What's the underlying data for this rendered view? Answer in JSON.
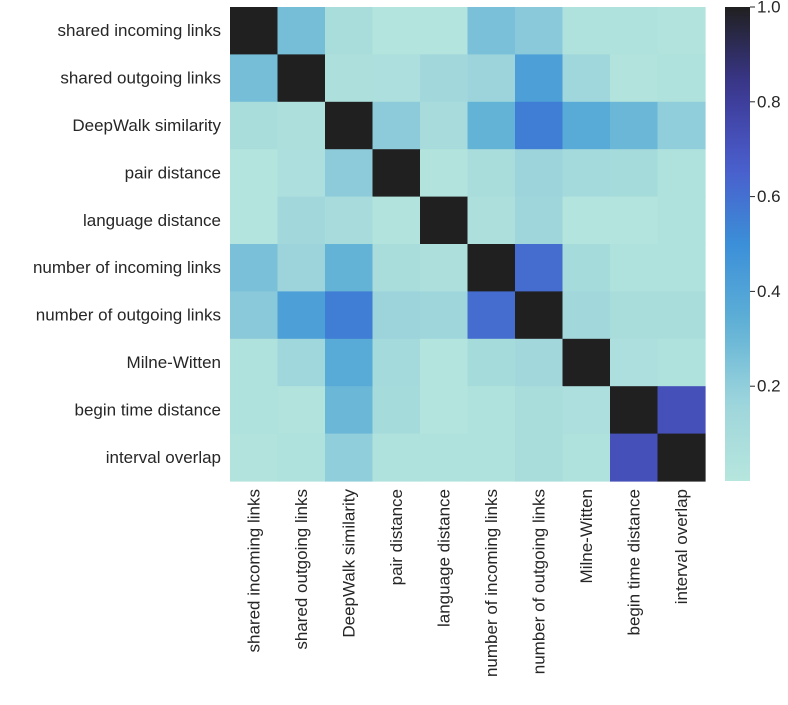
{
  "chart_data": {
    "type": "heatmap",
    "title": "",
    "xlabel": "",
    "ylabel": "",
    "labels": [
      "shared incoming links",
      "shared outgoing links",
      "DeepWalk similarity",
      "pair distance",
      "language distance",
      "number of incoming links",
      "number of outgoing links",
      "Milne-Witten",
      "begin time distance",
      "interval overlap"
    ],
    "matrix": [
      [
        1.0,
        0.27,
        0.09,
        0.02,
        0.02,
        0.26,
        0.22,
        0.04,
        0.05,
        0.03
      ],
      [
        0.27,
        1.0,
        0.06,
        0.07,
        0.14,
        0.17,
        0.42,
        0.15,
        0.03,
        0.05
      ],
      [
        0.09,
        0.06,
        1.0,
        0.21,
        0.1,
        0.32,
        0.56,
        0.36,
        0.3,
        0.2
      ],
      [
        0.02,
        0.07,
        0.21,
        1.0,
        0.03,
        0.09,
        0.17,
        0.12,
        0.11,
        0.05
      ],
      [
        0.02,
        0.14,
        0.1,
        0.03,
        1.0,
        0.06,
        0.16,
        0.02,
        0.02,
        0.04
      ],
      [
        0.26,
        0.17,
        0.32,
        0.09,
        0.06,
        1.0,
        0.61,
        0.11,
        0.04,
        0.04
      ],
      [
        0.22,
        0.42,
        0.56,
        0.17,
        0.16,
        0.61,
        1.0,
        0.14,
        0.09,
        0.09
      ],
      [
        0.04,
        0.15,
        0.36,
        0.12,
        0.02,
        0.11,
        0.14,
        1.0,
        0.07,
        0.05
      ],
      [
        0.05,
        0.03,
        0.3,
        0.11,
        0.02,
        0.04,
        0.09,
        0.07,
        1.0,
        0.72
      ],
      [
        0.03,
        0.05,
        0.2,
        0.05,
        0.04,
        0.04,
        0.09,
        0.05,
        0.72,
        1.0
      ]
    ],
    "colorbar": {
      "vmin": 0.0,
      "vmax": 1.0,
      "ticks": [
        "0.2",
        "0.4",
        "0.6",
        "0.8",
        "1.0"
      ]
    },
    "colormap": [
      "#b6e6dd",
      "#9ed5dc",
      "#5eb0d6",
      "#3b8fd8",
      "#4a5ccc",
      "#3b378f",
      "#202020"
    ],
    "grid": false
  }
}
